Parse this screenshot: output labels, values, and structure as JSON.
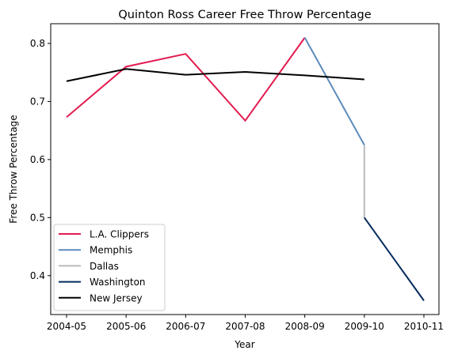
{
  "chart_data": {
    "type": "line",
    "title": "Quinton Ross Career Free Throw Percentage",
    "xlabel": "Year",
    "ylabel": "Free Throw Percentage",
    "categories": [
      "2004-05",
      "2005-06",
      "2006-07",
      "2007-08",
      "2008-09",
      "2009-10",
      "2010-11"
    ],
    "ylim": [
      0.333,
      0.834
    ],
    "yticks": [
      0.4,
      0.5,
      0.6,
      0.7,
      0.8
    ],
    "ytick_labels": [
      "0.4",
      "0.5",
      "0.6",
      "0.7",
      "0.8"
    ],
    "grid": false,
    "legend_position": "lower-left",
    "series": [
      {
        "name": "L.A. Clippers",
        "color": "#e31b4f",
        "points": [
          {
            "x": "2004-05",
            "y": 0.673
          },
          {
            "x": "2005-06",
            "y": 0.76
          },
          {
            "x": "2006-07",
            "y": 0.782
          },
          {
            "x": "2007-08",
            "y": 0.667
          },
          {
            "x": "2008-09",
            "y": 0.81
          }
        ]
      },
      {
        "name": "Memphis",
        "color": "#5d8bbc",
        "points": [
          {
            "x": "2008-09",
            "y": 0.81
          },
          {
            "x": "2009-10",
            "y": 0.625
          }
        ]
      },
      {
        "name": "Dallas",
        "color": "#bbbbbb",
        "points": [
          {
            "x": "2009-10",
            "y": 0.625
          },
          {
            "x": "2009-10",
            "y": 0.5
          }
        ]
      },
      {
        "name": "Washington",
        "color": "#002b5c",
        "points": [
          {
            "x": "2009-10",
            "y": 0.5
          },
          {
            "x": "2010-11",
            "y": 0.357
          }
        ]
      },
      {
        "name": "New Jersey",
        "color": "#000000",
        "points": [
          {
            "x": "2004-05",
            "y": 0.735
          },
          {
            "x": "2005-06",
            "y": 0.756
          },
          {
            "x": "2006-07",
            "y": 0.746
          },
          {
            "x": "2007-08",
            "y": 0.751
          },
          {
            "x": "2008-09",
            "y": 0.745
          },
          {
            "x": "2009-10",
            "y": 0.738
          }
        ]
      }
    ]
  }
}
